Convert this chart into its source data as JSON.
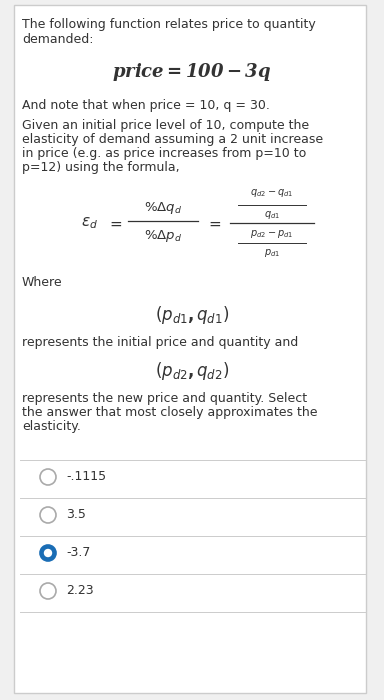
{
  "bg_color": "#f0f0f0",
  "border_color": "#cccccc",
  "text_color": "#333333",
  "selected_color": "#1a6db5",
  "unselected_color": "#aaaaaa",
  "choices": [
    {
      "label": "-.1115",
      "selected": false
    },
    {
      "label": "3.5",
      "selected": false
    },
    {
      "label": "-3.7",
      "selected": true
    },
    {
      "label": "2.23",
      "selected": false
    }
  ]
}
